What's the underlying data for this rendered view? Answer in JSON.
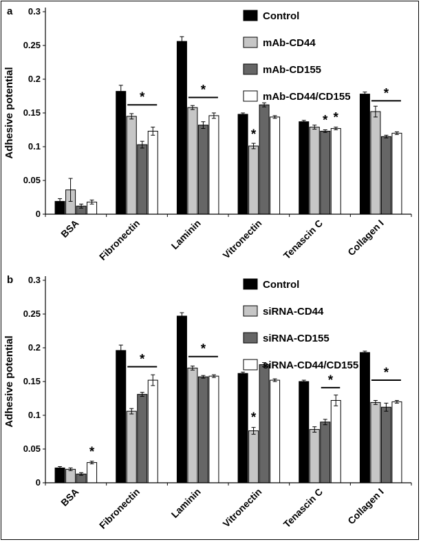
{
  "figure": {
    "border_color": "#000000",
    "background": "#ffffff"
  },
  "chart_data": [
    {
      "type": "bar",
      "panel_label": "a",
      "title": "",
      "xlabel": "",
      "ylabel": "Adhesive potential",
      "ylim": [
        0,
        0.3
      ],
      "yticks": [
        "0",
        "0.05",
        "0.1",
        "0.15",
        "0.2",
        "0.25",
        "0.3"
      ],
      "grid": false,
      "legend_position": "top-right-inside",
      "categories": [
        "BSA",
        "Fibronectin",
        "Laminin",
        "Vitronectin",
        "Tenascin C",
        "Collagen I"
      ],
      "series": [
        {
          "name": "Control",
          "color": "#000000",
          "values": [
            0.019,
            0.182,
            0.256,
            0.148,
            0.137,
            0.178
          ],
          "errors": [
            0.004,
            0.009,
            0.007,
            0.002,
            0.002,
            0.003
          ]
        },
        {
          "name": "mAb-CD44",
          "color": "#c6c6c6",
          "values": [
            0.036,
            0.145,
            0.158,
            0.101,
            0.129,
            0.152
          ],
          "errors": [
            0.017,
            0.004,
            0.003,
            0.004,
            0.003,
            0.008
          ]
        },
        {
          "name": "mAb-CD155",
          "color": "#666666",
          "values": [
            0.012,
            0.103,
            0.132,
            0.162,
            0.123,
            0.115
          ],
          "errors": [
            0.003,
            0.005,
            0.005,
            0.003,
            0.002,
            0.002
          ]
        },
        {
          "name": "mAb-CD44/CD155",
          "color": "#ffffff",
          "values": [
            0.018,
            0.123,
            0.146,
            0.144,
            0.127,
            0.12
          ],
          "errors": [
            0.003,
            0.006,
            0.004,
            0.002,
            0.002,
            0.002
          ]
        }
      ],
      "annotations": [
        {
          "type": "line_star",
          "category": 1,
          "from": 1,
          "to": 3,
          "y": 0.162,
          "label": "*"
        },
        {
          "type": "line_star",
          "category": 2,
          "from": 1,
          "to": 3,
          "y": 0.173,
          "label": "*"
        },
        {
          "type": "star",
          "category": 3,
          "series": 1,
          "y": 0.112,
          "label": "*"
        },
        {
          "type": "star",
          "category": 4,
          "series": 2,
          "y": 0.133,
          "label": "*"
        },
        {
          "type": "star",
          "category": 4,
          "series": 3,
          "y": 0.137,
          "label": "*"
        },
        {
          "type": "line_star",
          "category": 5,
          "from": 1,
          "to": 3,
          "y": 0.168,
          "label": "*"
        }
      ]
    },
    {
      "type": "bar",
      "panel_label": "b",
      "title": "",
      "xlabel": "",
      "ylabel": "Adhesive potential",
      "ylim": [
        0,
        0.3
      ],
      "yticks": [
        "0",
        "0.05",
        "0.1",
        "0.15",
        "0.2",
        "0.25",
        "0.3"
      ],
      "grid": false,
      "legend_position": "top-right-inside",
      "categories": [
        "BSA",
        "Fibronectin",
        "Laminin",
        "Vitronectin",
        "Tenascin C",
        "Collagen I"
      ],
      "series": [
        {
          "name": "Control",
          "color": "#000000",
          "values": [
            0.022,
            0.196,
            0.247,
            0.162,
            0.15,
            0.193
          ],
          "errors": [
            0.002,
            0.008,
            0.005,
            0.002,
            0.002,
            0.002
          ]
        },
        {
          "name": "siRNA-CD44",
          "color": "#c6c6c6",
          "values": [
            0.02,
            0.106,
            0.17,
            0.077,
            0.079,
            0.119
          ],
          "errors": [
            0.002,
            0.004,
            0.003,
            0.005,
            0.004,
            0.003
          ]
        },
        {
          "name": "siRNA-CD155",
          "color": "#666666",
          "values": [
            0.013,
            0.131,
            0.157,
            0.175,
            0.09,
            0.112
          ],
          "errors": [
            0.002,
            0.003,
            0.002,
            0.003,
            0.004,
            0.006
          ]
        },
        {
          "name": "siRNA-CD44/CD155",
          "color": "#ffffff",
          "values": [
            0.03,
            0.152,
            0.158,
            0.152,
            0.122,
            0.12
          ],
          "errors": [
            0.002,
            0.008,
            0.002,
            0.002,
            0.008,
            0.002
          ]
        }
      ],
      "annotations": [
        {
          "type": "star",
          "category": 0,
          "series": 3,
          "y": 0.04,
          "label": "*"
        },
        {
          "type": "line_star",
          "category": 1,
          "from": 1,
          "to": 3,
          "y": 0.172,
          "label": "*"
        },
        {
          "type": "line_star",
          "category": 2,
          "from": 1,
          "to": 3,
          "y": 0.187,
          "label": "*"
        },
        {
          "type": "star",
          "category": 3,
          "series": 1,
          "y": 0.091,
          "label": "*"
        },
        {
          "type": "line_star",
          "category": 4,
          "from": 2,
          "to": 3,
          "y": 0.141,
          "label": "*"
        },
        {
          "type": "line_star",
          "category": 5,
          "from": 1,
          "to": 3,
          "y": 0.152,
          "label": "*"
        }
      ]
    }
  ]
}
